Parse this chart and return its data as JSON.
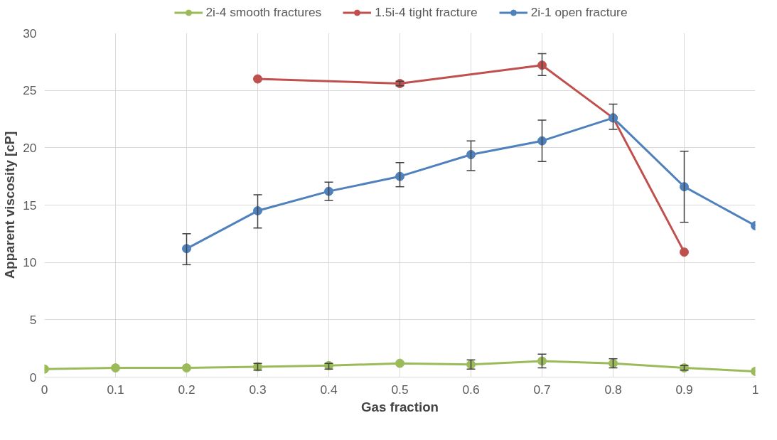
{
  "chart_data": {
    "type": "line",
    "xlabel": "Gas fraction",
    "ylabel": "Apparent viscosity [cP]",
    "xlim": [
      0,
      1
    ],
    "xticks": [
      0,
      0.1,
      0.2,
      0.3,
      0.4,
      0.5,
      0.6,
      0.7,
      0.8,
      0.9,
      1
    ],
    "ylim": [
      0,
      30
    ],
    "yticks": [
      0,
      5,
      10,
      15,
      20,
      25,
      30
    ],
    "grid": true,
    "legend": "top",
    "marker": "circle",
    "line_style": "solid",
    "series": [
      {
        "name": "2i-4 smooth fractures",
        "color": "#9bbb59",
        "x": [
          0,
          0.1,
          0.2,
          0.3,
          0.4,
          0.5,
          0.6,
          0.7,
          0.8,
          0.9,
          1
        ],
        "values": [
          0.7,
          0.8,
          0.8,
          0.9,
          1.0,
          1.2,
          1.1,
          1.4,
          1.2,
          0.8,
          0.5
        ],
        "errors": [
          null,
          null,
          null,
          [
            0.6,
            1.2
          ],
          [
            0.7,
            1.2
          ],
          null,
          [
            0.7,
            1.5
          ],
          [
            0.8,
            2.0
          ],
          [
            0.8,
            1.6
          ],
          [
            0.6,
            1.0
          ],
          null
        ]
      },
      {
        "name": "1.5i-4 tight fracture",
        "color": "#c0504d",
        "x": [
          0.3,
          0.5,
          0.7,
          0.8,
          0.9
        ],
        "values": [
          26.0,
          25.6,
          27.2,
          22.6,
          10.9
        ],
        "errors": [
          null,
          [
            25.4,
            25.8
          ],
          [
            26.3,
            28.2
          ],
          null,
          null
        ]
      },
      {
        "name": "2i-1 open fracture",
        "color": "#4f81bd",
        "x": [
          0.2,
          0.3,
          0.4,
          0.5,
          0.6,
          0.7,
          0.8,
          0.9,
          1
        ],
        "values": [
          11.2,
          14.5,
          16.2,
          17.5,
          19.4,
          20.6,
          22.6,
          16.6,
          13.2
        ],
        "errors": [
          [
            9.8,
            12.5
          ],
          [
            13.0,
            15.9
          ],
          [
            15.4,
            17.0
          ],
          [
            16.6,
            18.7
          ],
          [
            18.0,
            20.6
          ],
          [
            18.8,
            22.4
          ],
          [
            21.6,
            23.8
          ],
          [
            13.5,
            19.7
          ],
          null
        ]
      }
    ]
  }
}
